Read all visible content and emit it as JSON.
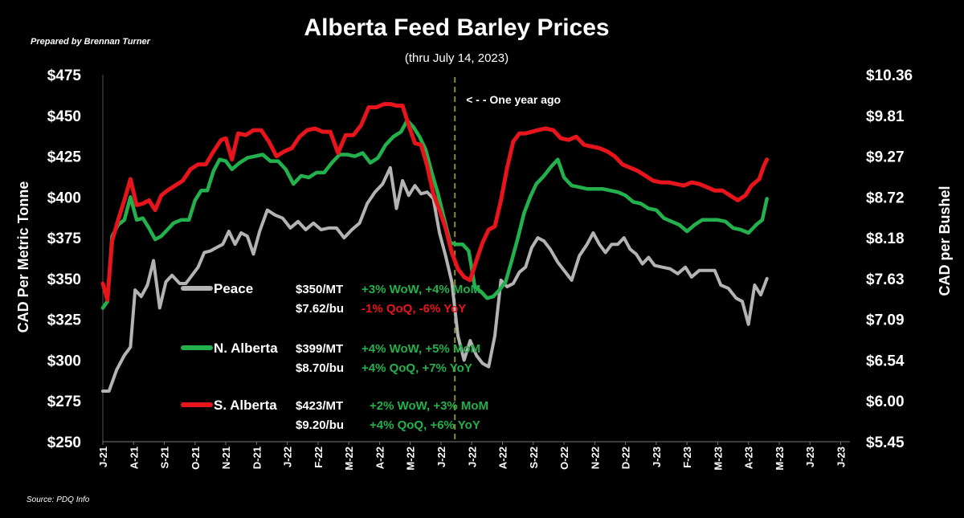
{
  "title": "Alberta Feed Barley Prices",
  "subtitle": "(thru July 14, 2023)",
  "byline": "Prepared by Brennan Turner",
  "source": "Source: PDQ Info",
  "chart_data": {
    "type": "line",
    "y_left": {
      "label": "CAD Per Metric Tonne",
      "min": 250,
      "max": 475,
      "ticks": [
        "$475",
        "$450",
        "$425",
        "$400",
        "$375",
        "$350",
        "$325",
        "$300",
        "$275",
        "$250"
      ]
    },
    "y_right": {
      "label": "CAD per Bushel",
      "ticks": [
        "$10.36",
        "$9.81",
        "$9.27",
        "$8.72",
        "$8.18",
        "$7.63",
        "$7.09",
        "$6.54",
        "$6.00",
        "$5.45"
      ]
    },
    "x_tick_labels": [
      "J-21",
      "A-21",
      "S-21",
      "O-21",
      "N-21",
      "D-21",
      "J-22",
      "F-22",
      "M-22",
      "A-22",
      "M-22",
      "J-22",
      "J-22",
      "A-22",
      "S-22",
      "O-22",
      "N-22",
      "D-22",
      "J-23",
      "F-23",
      "M-23",
      "A-23",
      "M-23",
      "J-23",
      "J-23"
    ],
    "x_range": [
      0,
      24.3
    ],
    "series": [
      {
        "name": "Peace",
        "color": "#b3b3b3",
        "points": [
          [
            0,
            281
          ],
          [
            0.2,
            281
          ],
          [
            0.45,
            294
          ],
          [
            0.7,
            303
          ],
          [
            0.9,
            308
          ],
          [
            1.05,
            343
          ],
          [
            1.25,
            339
          ],
          [
            1.45,
            346
          ],
          [
            1.65,
            361
          ],
          [
            1.85,
            332
          ],
          [
            2.05,
            348
          ],
          [
            2.25,
            352
          ],
          [
            2.5,
            347
          ],
          [
            2.7,
            347
          ],
          [
            2.9,
            352
          ],
          [
            3.1,
            357
          ],
          [
            3.3,
            366
          ],
          [
            3.5,
            367
          ],
          [
            3.7,
            369
          ],
          [
            3.9,
            371
          ],
          [
            4.1,
            379
          ],
          [
            4.3,
            371
          ],
          [
            4.5,
            378
          ],
          [
            4.7,
            376
          ],
          [
            4.9,
            365
          ],
          [
            5.1,
            379
          ],
          [
            5.35,
            392
          ],
          [
            5.6,
            389
          ],
          [
            5.85,
            387
          ],
          [
            6.1,
            381
          ],
          [
            6.35,
            385
          ],
          [
            6.6,
            380
          ],
          [
            6.85,
            384
          ],
          [
            7.1,
            380
          ],
          [
            7.35,
            381
          ],
          [
            7.6,
            381
          ],
          [
            7.85,
            375
          ],
          [
            8.1,
            380
          ],
          [
            8.35,
            384
          ],
          [
            8.6,
            396
          ],
          [
            8.85,
            403
          ],
          [
            9.1,
            408
          ],
          [
            9.35,
            418
          ],
          [
            9.55,
            393
          ],
          [
            9.75,
            410
          ],
          [
            9.95,
            401
          ],
          [
            10.15,
            407
          ],
          [
            10.35,
            402
          ],
          [
            10.55,
            403
          ],
          [
            10.75,
            399
          ],
          [
            10.95,
            378
          ],
          [
            11.15,
            364
          ],
          [
            11.35,
            348
          ],
          [
            11.55,
            315
          ],
          [
            11.75,
            300
          ],
          [
            11.95,
            312
          ],
          [
            12.15,
            303
          ],
          [
            12.35,
            298
          ],
          [
            12.55,
            296
          ],
          [
            12.75,
            315
          ],
          [
            12.95,
            349
          ],
          [
            13.15,
            345
          ],
          [
            13.35,
            347
          ],
          [
            13.55,
            354
          ],
          [
            13.75,
            357
          ],
          [
            13.95,
            369
          ],
          [
            14.15,
            375
          ],
          [
            14.35,
            373
          ],
          [
            14.55,
            368
          ],
          [
            14.8,
            360
          ],
          [
            15.0,
            355
          ],
          [
            15.25,
            349
          ],
          [
            15.5,
            364
          ],
          [
            15.75,
            371
          ],
          [
            15.95,
            378
          ],
          [
            16.15,
            371
          ],
          [
            16.35,
            366
          ],
          [
            16.55,
            371
          ],
          [
            16.75,
            371
          ],
          [
            16.95,
            375
          ],
          [
            17.15,
            368
          ],
          [
            17.35,
            365
          ],
          [
            17.55,
            359
          ],
          [
            17.75,
            363
          ],
          [
            17.95,
            358
          ],
          [
            18.2,
            357
          ],
          [
            18.45,
            356
          ],
          [
            18.7,
            353
          ],
          [
            18.95,
            357
          ],
          [
            19.15,
            351
          ],
          [
            19.4,
            355
          ],
          [
            19.65,
            355
          ],
          [
            19.9,
            355
          ],
          [
            20.1,
            346
          ],
          [
            20.35,
            344
          ],
          [
            20.6,
            338
          ],
          [
            20.8,
            336
          ],
          [
            21.0,
            322
          ],
          [
            21.2,
            346
          ],
          [
            21.4,
            340
          ],
          [
            21.6,
            350
          ]
        ]
      },
      {
        "name": "N. Alberta",
        "color": "#22b14c",
        "points": [
          [
            0,
            332
          ],
          [
            0.15,
            336
          ],
          [
            0.3,
            376
          ],
          [
            0.5,
            383
          ],
          [
            0.7,
            386
          ],
          [
            0.9,
            400
          ],
          [
            1.1,
            386
          ],
          [
            1.3,
            387
          ],
          [
            1.5,
            381
          ],
          [
            1.7,
            374
          ],
          [
            1.9,
            376
          ],
          [
            2.1,
            380
          ],
          [
            2.3,
            384
          ],
          [
            2.55,
            386
          ],
          [
            2.8,
            386
          ],
          [
            3.0,
            398
          ],
          [
            3.2,
            404
          ],
          [
            3.4,
            404
          ],
          [
            3.6,
            416
          ],
          [
            3.8,
            423
          ],
          [
            4.0,
            422
          ],
          [
            4.2,
            417
          ],
          [
            4.45,
            421
          ],
          [
            4.7,
            424
          ],
          [
            4.95,
            425
          ],
          [
            5.2,
            426
          ],
          [
            5.45,
            422
          ],
          [
            5.7,
            422
          ],
          [
            5.95,
            417
          ],
          [
            6.2,
            408
          ],
          [
            6.45,
            413
          ],
          [
            6.7,
            412
          ],
          [
            6.95,
            415
          ],
          [
            7.2,
            415
          ],
          [
            7.45,
            421
          ],
          [
            7.7,
            426
          ],
          [
            7.95,
            426
          ],
          [
            8.2,
            425
          ],
          [
            8.45,
            427
          ],
          [
            8.7,
            421
          ],
          [
            8.95,
            424
          ],
          [
            9.2,
            432
          ],
          [
            9.45,
            437
          ],
          [
            9.7,
            440
          ],
          [
            9.9,
            447
          ],
          [
            10.1,
            443
          ],
          [
            10.3,
            437
          ],
          [
            10.5,
            429
          ],
          [
            10.7,
            415
          ],
          [
            10.9,
            402
          ],
          [
            11.1,
            387
          ],
          [
            11.3,
            372
          ],
          [
            11.5,
            371
          ],
          [
            11.7,
            371
          ],
          [
            11.9,
            367
          ],
          [
            12.1,
            345
          ],
          [
            12.3,
            342
          ],
          [
            12.5,
            338
          ],
          [
            12.7,
            339
          ],
          [
            12.9,
            343
          ],
          [
            13.1,
            348
          ],
          [
            13.3,
            361
          ],
          [
            13.5,
            375
          ],
          [
            13.7,
            390
          ],
          [
            13.9,
            400
          ],
          [
            14.1,
            408
          ],
          [
            14.35,
            413
          ],
          [
            14.6,
            419
          ],
          [
            14.8,
            423
          ],
          [
            15.0,
            412
          ],
          [
            15.25,
            407
          ],
          [
            15.5,
            406
          ],
          [
            15.75,
            405
          ],
          [
            16.0,
            405
          ],
          [
            16.25,
            405
          ],
          [
            16.5,
            404
          ],
          [
            16.75,
            403
          ],
          [
            17.0,
            401
          ],
          [
            17.25,
            397
          ],
          [
            17.5,
            396
          ],
          [
            17.75,
            393
          ],
          [
            18.0,
            392
          ],
          [
            18.25,
            387
          ],
          [
            18.5,
            385
          ],
          [
            18.75,
            383
          ],
          [
            19.0,
            379
          ],
          [
            19.25,
            383
          ],
          [
            19.5,
            386
          ],
          [
            19.75,
            386
          ],
          [
            20.0,
            386
          ],
          [
            20.25,
            385
          ],
          [
            20.5,
            381
          ],
          [
            20.75,
            380
          ],
          [
            21.0,
            378
          ],
          [
            21.25,
            383
          ],
          [
            21.45,
            386
          ],
          [
            21.6,
            399
          ]
        ]
      },
      {
        "name": "S. Alberta",
        "color": "#e8141c",
        "points": [
          [
            0,
            347
          ],
          [
            0.15,
            337
          ],
          [
            0.3,
            373
          ],
          [
            0.5,
            386
          ],
          [
            0.7,
            398
          ],
          [
            0.9,
            411
          ],
          [
            1.1,
            395
          ],
          [
            1.3,
            396
          ],
          [
            1.5,
            398
          ],
          [
            1.7,
            392
          ],
          [
            1.9,
            401
          ],
          [
            2.1,
            404
          ],
          [
            2.35,
            407
          ],
          [
            2.6,
            410
          ],
          [
            2.85,
            417
          ],
          [
            3.1,
            420
          ],
          [
            3.35,
            420
          ],
          [
            3.6,
            428
          ],
          [
            3.85,
            435
          ],
          [
            4.0,
            436
          ],
          [
            4.2,
            423
          ],
          [
            4.4,
            439
          ],
          [
            4.65,
            438
          ],
          [
            4.9,
            441
          ],
          [
            5.15,
            441
          ],
          [
            5.4,
            434
          ],
          [
            5.65,
            425
          ],
          [
            5.9,
            428
          ],
          [
            6.15,
            430
          ],
          [
            6.4,
            437
          ],
          [
            6.65,
            441
          ],
          [
            6.9,
            442
          ],
          [
            7.15,
            440
          ],
          [
            7.4,
            440
          ],
          [
            7.65,
            427
          ],
          [
            7.9,
            438
          ],
          [
            8.15,
            438
          ],
          [
            8.4,
            444
          ],
          [
            8.65,
            455
          ],
          [
            8.9,
            455
          ],
          [
            9.15,
            457
          ],
          [
            9.35,
            457
          ],
          [
            9.55,
            456
          ],
          [
            9.75,
            456
          ],
          [
            9.95,
            444
          ],
          [
            10.15,
            433
          ],
          [
            10.35,
            432
          ],
          [
            10.55,
            419
          ],
          [
            10.75,
            402
          ],
          [
            10.95,
            392
          ],
          [
            11.15,
            381
          ],
          [
            11.35,
            366
          ],
          [
            11.55,
            356
          ],
          [
            11.75,
            351
          ],
          [
            11.95,
            349
          ],
          [
            12.15,
            361
          ],
          [
            12.35,
            372
          ],
          [
            12.55,
            380
          ],
          [
            12.75,
            382
          ],
          [
            12.95,
            398
          ],
          [
            13.15,
            418
          ],
          [
            13.35,
            434
          ],
          [
            13.55,
            439
          ],
          [
            13.75,
            439
          ],
          [
            13.95,
            440
          ],
          [
            14.15,
            441
          ],
          [
            14.4,
            442
          ],
          [
            14.65,
            441
          ],
          [
            14.9,
            436
          ],
          [
            15.15,
            435
          ],
          [
            15.4,
            437
          ],
          [
            15.65,
            432
          ],
          [
            15.9,
            431
          ],
          [
            16.15,
            430
          ],
          [
            16.4,
            428
          ],
          [
            16.65,
            425
          ],
          [
            16.9,
            420
          ],
          [
            17.15,
            418
          ],
          [
            17.4,
            416
          ],
          [
            17.65,
            413
          ],
          [
            17.9,
            410
          ],
          [
            18.15,
            409
          ],
          [
            18.4,
            409
          ],
          [
            18.65,
            408
          ],
          [
            18.9,
            407
          ],
          [
            19.15,
            409
          ],
          [
            19.4,
            408
          ],
          [
            19.65,
            406
          ],
          [
            19.9,
            404
          ],
          [
            20.15,
            404
          ],
          [
            20.4,
            401
          ],
          [
            20.65,
            398
          ],
          [
            20.9,
            401
          ],
          [
            21.1,
            407
          ],
          [
            21.35,
            411
          ],
          [
            21.5,
            419
          ],
          [
            21.6,
            423
          ]
        ]
      }
    ],
    "reference_line": {
      "x": 11.45,
      "label": "< - - One year ago",
      "color": "#8b8b2a"
    },
    "legend": [
      {
        "name": "Peace",
        "color": "#b3b3b3",
        "mt": "$350/MT",
        "mt_change": "+3% WoW, +4% MoM",
        "mt_color": "#22b14c",
        "bu": "$7.62/bu",
        "bu_change": "-1% QoQ, -6% YoY",
        "bu_color": "#e8141c"
      },
      {
        "name": "N. Alberta",
        "color": "#22b14c",
        "mt": "$399/MT",
        "mt_change": "+4% WoW, +5% MoM",
        "mt_color": "#22b14c",
        "bu": "$8.70/bu",
        "bu_change": "+4% QoQ, +7% YoY",
        "bu_color": "#22b14c"
      },
      {
        "name": "S. Alberta",
        "color": "#e8141c",
        "mt": "$423/MT",
        "mt_change": "+2% WoW, +3% MoM",
        "mt_color": "#22b14c",
        "bu": "$9.20/bu",
        "bu_change": "+4% QoQ, +6% YoY",
        "bu_color": "#22b14c"
      }
    ]
  }
}
